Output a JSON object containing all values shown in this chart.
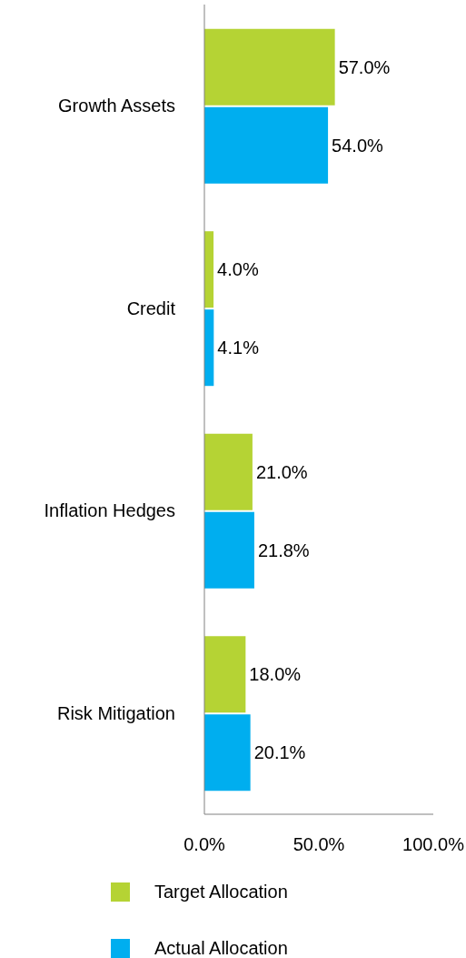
{
  "chart_data": {
    "type": "bar",
    "orientation": "horizontal",
    "categories": [
      "Growth Assets",
      "Credit",
      "Inflation Hedges",
      "Risk Mitigation"
    ],
    "series": [
      {
        "name": "Target Allocation",
        "color": "#b5d334",
        "values": [
          57.0,
          4.0,
          21.0,
          18.0
        ],
        "value_labels": [
          "57.0%",
          "4.0%",
          "21.0%",
          "18.0%"
        ]
      },
      {
        "name": "Actual Allocation",
        "color": "#00aeef",
        "values": [
          54.0,
          4.1,
          21.8,
          20.1
        ],
        "value_labels": [
          "54.0%",
          "4.1%",
          "21.8%",
          "20.1%"
        ]
      }
    ],
    "xlim": [
      0,
      100
    ],
    "xticks": [
      {
        "value": 0,
        "label": "0.0%"
      },
      {
        "value": 50,
        "label": "50.0%"
      },
      {
        "value": 100,
        "label": "100.0%"
      }
    ],
    "grid": false,
    "legend": "bottom"
  }
}
